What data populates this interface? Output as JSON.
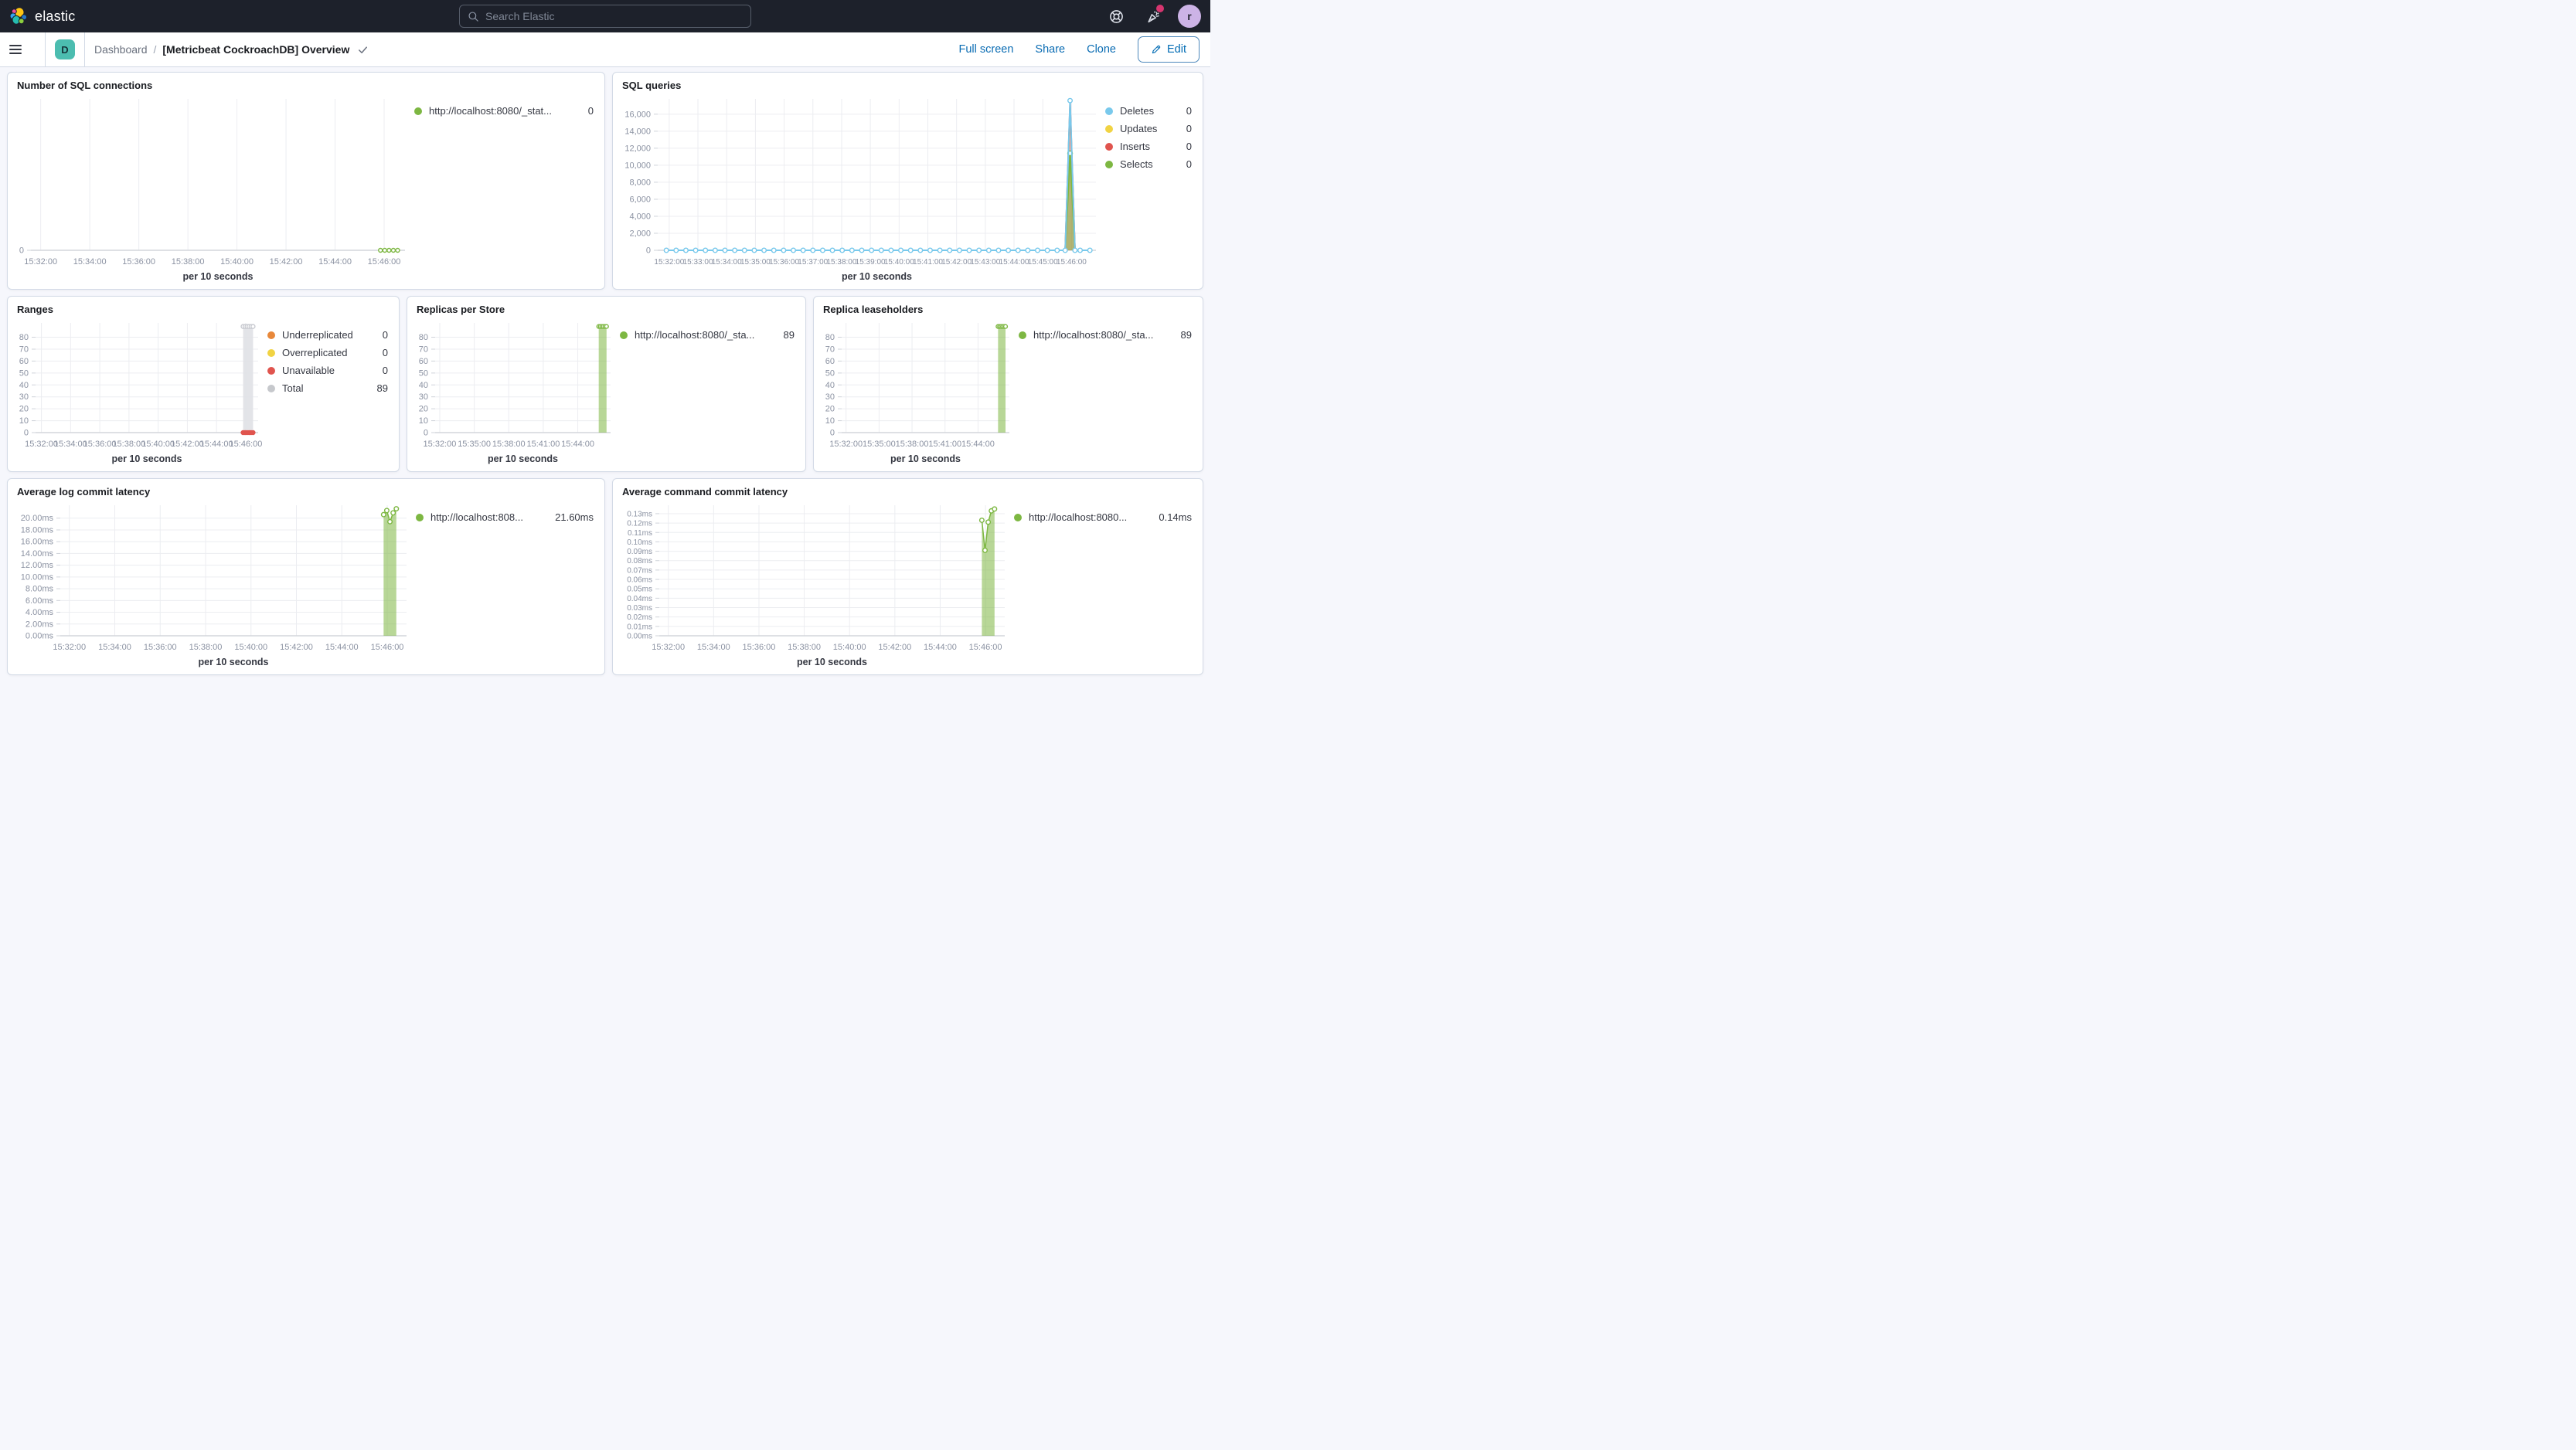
{
  "header": {
    "brand": "elastic",
    "search_placeholder": "Search Elastic",
    "avatar_initial": "r"
  },
  "navbar": {
    "menu_badge": "D",
    "breadcrumb": {
      "parent": "Dashboard",
      "separator": "/",
      "current": "[Metricbeat CockroachDB] Overview"
    },
    "actions": {
      "full_screen": "Full screen",
      "share": "Share",
      "clone": "Clone",
      "edit": "Edit"
    }
  },
  "chart_data": [
    {
      "type": "line",
      "title": "Number of SQL connections",
      "x_label": "per 10 seconds",
      "x_domain": [
        1.6,
        16.85
      ],
      "x_ticks": [
        {
          "t": 2,
          "label": "15:32:00"
        },
        {
          "t": 4,
          "label": "15:34:00"
        },
        {
          "t": 6,
          "label": "15:36:00"
        },
        {
          "t": 8,
          "label": "15:38:00"
        },
        {
          "t": 10,
          "label": "15:40:00"
        },
        {
          "t": 12,
          "label": "15:42:00"
        },
        {
          "t": 14,
          "label": "15:44:00"
        },
        {
          "t": 16,
          "label": "15:46:00"
        }
      ],
      "y_domain": [
        0,
        1
      ],
      "y_ticks": [
        {
          "v": 0,
          "label": "0"
        }
      ],
      "margin_left": 26,
      "series": [
        {
          "name": "http://localhost:8080/_stat...",
          "color": "#7db742",
          "width": 1.5,
          "markers": true,
          "marker_r": 2.5,
          "flat": [
            {
              "from": 15.85,
              "to": 16.55,
              "step": 0.175,
              "value": 0
            }
          ]
        }
      ],
      "legend": [
        {
          "label": "http://localhost:8080/_stat...",
          "value": "0",
          "color": "#7db742"
        }
      ]
    },
    {
      "type": "line",
      "title": "SQL queries",
      "x_label": "per 10 seconds",
      "x_domain": [
        1.6,
        16.85
      ],
      "x_tick_font": 10,
      "x_ticks": [
        {
          "t": 2,
          "label": "15:32:00"
        },
        {
          "t": 3,
          "label": "15:33:00"
        },
        {
          "t": 4,
          "label": "15:34:00"
        },
        {
          "t": 5,
          "label": "15:35:00"
        },
        {
          "t": 6,
          "label": "15:36:00"
        },
        {
          "t": 7,
          "label": "15:37:00"
        },
        {
          "t": 8,
          "label": "15:38:00"
        },
        {
          "t": 9,
          "label": "15:39:00"
        },
        {
          "t": 10,
          "label": "15:40:00"
        },
        {
          "t": 11,
          "label": "15:41:00"
        },
        {
          "t": 12,
          "label": "15:42:00"
        },
        {
          "t": 13,
          "label": "15:43:00"
        },
        {
          "t": 14,
          "label": "15:44:00"
        },
        {
          "t": 15,
          "label": "15:45:00"
        },
        {
          "t": 16,
          "label": "15:46:00"
        }
      ],
      "y_domain": [
        0,
        17800
      ],
      "y_ticks": [
        {
          "v": 0,
          "label": "0"
        },
        {
          "v": 2000,
          "label": "2,000"
        },
        {
          "v": 4000,
          "label": "4,000"
        },
        {
          "v": 6000,
          "label": "6,000"
        },
        {
          "v": 8000,
          "label": "8,000"
        },
        {
          "v": 10000,
          "label": "10,000"
        },
        {
          "v": 12000,
          "label": "12,000"
        },
        {
          "v": 14000,
          "label": "14,000"
        },
        {
          "v": 16000,
          "label": "16,000"
        }
      ],
      "margin_left": 54,
      "series": [
        {
          "name": "Updates",
          "color": "#f1d343",
          "width": 2,
          "points": [
            [
              15.78,
              0
            ],
            [
              15.95,
              16900
            ],
            [
              16.12,
              0
            ]
          ]
        },
        {
          "name": "Inserts",
          "color": "#e0544e",
          "width": 2,
          "fill": true,
          "fill_opacity": 0.45,
          "points": [
            [
              15.78,
              0
            ],
            [
              15.95,
              17300
            ],
            [
              16.12,
              0
            ]
          ]
        },
        {
          "name": "Selects",
          "color": "#7db742",
          "width": 2,
          "fill": true,
          "fill_opacity": 0.55,
          "points": [
            [
              15.78,
              0
            ],
            [
              15.95,
              11400
            ],
            [
              16.12,
              0
            ]
          ],
          "marker_points": [
            [
              15.95,
              11400
            ]
          ],
          "marker_r": 3
        },
        {
          "name": "Deletes",
          "color": "#79c9ec",
          "width": 2,
          "markers": true,
          "marker_r": 2.8,
          "flat": [
            {
              "from": 1.9,
              "to": 15.55,
              "step": 0.34,
              "value": 0
            },
            {
              "from": 16.3,
              "to": 16.65,
              "step": 0.34,
              "value": 0
            }
          ],
          "points": [
            [
              15.78,
              0
            ],
            [
              15.95,
              17600
            ],
            [
              16.12,
              0
            ]
          ]
        }
      ],
      "legend": [
        {
          "label": "Deletes",
          "value": "0",
          "color": "#79c9ec"
        },
        {
          "label": "Updates",
          "value": "0",
          "color": "#f1d343"
        },
        {
          "label": "Inserts",
          "value": "0",
          "color": "#e0544e"
        },
        {
          "label": "Selects",
          "value": "0",
          "color": "#7db742"
        }
      ]
    },
    {
      "type": "area",
      "title": "Ranges",
      "x_label": "per 10 seconds",
      "x_domain": [
        1.6,
        16.85
      ],
      "x_ticks": [
        {
          "t": 2,
          "label": "15:32:00"
        },
        {
          "t": 4,
          "label": "15:34:00"
        },
        {
          "t": 6,
          "label": "15:36:00"
        },
        {
          "t": 8,
          "label": "15:38:00"
        },
        {
          "t": 10,
          "label": "15:40:00"
        },
        {
          "t": 12,
          "label": "15:42:00"
        },
        {
          "t": 14,
          "label": "15:44:00"
        },
        {
          "t": 16,
          "label": "15:46:00"
        }
      ],
      "y_domain": [
        0,
        92
      ],
      "y_ticks": [
        {
          "v": 0,
          "label": "0"
        },
        {
          "v": 10,
          "label": "10"
        },
        {
          "v": 20,
          "label": "20"
        },
        {
          "v": 30,
          "label": "30"
        },
        {
          "v": 40,
          "label": "40"
        },
        {
          "v": 50,
          "label": "50"
        },
        {
          "v": 60,
          "label": "60"
        },
        {
          "v": 70,
          "label": "70"
        },
        {
          "v": 80,
          "label": "80"
        }
      ],
      "margin_left": 32,
      "series": [
        {
          "name": "Total",
          "color": "#c9cbd1",
          "width": 1,
          "fill": true,
          "fill_color": "#e0e1e5",
          "fill_opacity": 0.9,
          "markers": true,
          "marker_r": 2.5,
          "flat": [
            {
              "from": 15.82,
              "to": 16.5,
              "step": 0.136,
              "value": 89
            }
          ]
        },
        {
          "name": "Underreplicated",
          "color": "#e8883a",
          "width": 1.5,
          "flat": [
            {
              "from": 15.82,
              "to": 16.5,
              "step": 0.136,
              "value": 0
            }
          ]
        },
        {
          "name": "Overreplicated",
          "color": "#f1d343",
          "width": 1.5,
          "flat": [
            {
              "from": 15.82,
              "to": 16.5,
              "step": 0.136,
              "value": 0
            }
          ]
        },
        {
          "name": "Unavailable",
          "color": "#e0544e",
          "width": 1.5,
          "markers": true,
          "marker": "solid",
          "marker_r": 2.5,
          "flat": [
            {
              "from": 15.82,
              "to": 16.5,
              "step": 0.136,
              "value": 0
            }
          ]
        }
      ],
      "legend": [
        {
          "label": "Underreplicated",
          "value": "0",
          "color": "#e8883a"
        },
        {
          "label": "Overreplicated",
          "value": "0",
          "color": "#f1d343"
        },
        {
          "label": "Unavailable",
          "value": "0",
          "color": "#e0544e"
        },
        {
          "label": "Total",
          "value": "89",
          "color": "#c6c8cc"
        }
      ]
    },
    {
      "type": "area",
      "title": "Replicas per Store",
      "x_label": "per 10 seconds",
      "x_domain": [
        1.6,
        16.85
      ],
      "x_ticks": [
        {
          "t": 2,
          "label": "15:32:00"
        },
        {
          "t": 5,
          "label": "15:35:00"
        },
        {
          "t": 8,
          "label": "15:38:00"
        },
        {
          "t": 11,
          "label": "15:41:00"
        },
        {
          "t": 14,
          "label": "15:44:00"
        }
      ],
      "y_domain": [
        0,
        92
      ],
      "y_ticks": [
        {
          "v": 0,
          "label": "0"
        },
        {
          "v": 10,
          "label": "10"
        },
        {
          "v": 20,
          "label": "20"
        },
        {
          "v": 30,
          "label": "30"
        },
        {
          "v": 40,
          "label": "40"
        },
        {
          "v": 50,
          "label": "50"
        },
        {
          "v": 60,
          "label": "60"
        },
        {
          "v": 70,
          "label": "70"
        },
        {
          "v": 80,
          "label": "80"
        }
      ],
      "margin_left": 32,
      "series": [
        {
          "name": "http://localhost:8080/_sta...",
          "color": "#7db742",
          "width": 1.2,
          "fill": true,
          "fill_opacity": 0.55,
          "markers": true,
          "marker_r": 2.4,
          "flat": [
            {
              "from": 15.82,
              "to": 16.5,
              "step": 0.136,
              "value": 89
            }
          ]
        }
      ],
      "legend": [
        {
          "label": "http://localhost:8080/_sta...",
          "value": "89",
          "color": "#7db742"
        }
      ]
    },
    {
      "type": "area",
      "title": "Replica leaseholders",
      "x_label": "per 10 seconds",
      "x_domain": [
        1.6,
        16.85
      ],
      "x_ticks": [
        {
          "t": 2,
          "label": "15:32:00"
        },
        {
          "t": 5,
          "label": "15:35:00"
        },
        {
          "t": 8,
          "label": "15:38:00"
        },
        {
          "t": 11,
          "label": "15:41:00"
        },
        {
          "t": 14,
          "label": "15:44:00"
        }
      ],
      "y_domain": [
        0,
        92
      ],
      "y_ticks": [
        {
          "v": 0,
          "label": "0"
        },
        {
          "v": 10,
          "label": "10"
        },
        {
          "v": 20,
          "label": "20"
        },
        {
          "v": 30,
          "label": "30"
        },
        {
          "v": 40,
          "label": "40"
        },
        {
          "v": 50,
          "label": "50"
        },
        {
          "v": 60,
          "label": "60"
        },
        {
          "v": 70,
          "label": "70"
        },
        {
          "v": 80,
          "label": "80"
        }
      ],
      "margin_left": 32,
      "series": [
        {
          "name": "http://localhost:8080/_sta...",
          "color": "#7db742",
          "width": 1.2,
          "fill": true,
          "fill_opacity": 0.55,
          "markers": true,
          "marker_r": 2.4,
          "flat": [
            {
              "from": 15.82,
              "to": 16.5,
              "step": 0.136,
              "value": 89
            }
          ]
        }
      ],
      "legend": [
        {
          "label": "http://localhost:8080/_sta...",
          "value": "89",
          "color": "#7db742"
        }
      ]
    },
    {
      "type": "area",
      "title": "Average log commit latency",
      "x_label": "per 10 seconds",
      "x_domain": [
        1.6,
        16.85
      ],
      "x_ticks": [
        {
          "t": 2,
          "label": "15:32:00"
        },
        {
          "t": 4,
          "label": "15:34:00"
        },
        {
          "t": 6,
          "label": "15:36:00"
        },
        {
          "t": 8,
          "label": "15:38:00"
        },
        {
          "t": 10,
          "label": "15:40:00"
        },
        {
          "t": 12,
          "label": "15:42:00"
        },
        {
          "t": 14,
          "label": "15:44:00"
        },
        {
          "t": 16,
          "label": "15:46:00"
        }
      ],
      "y_domain": [
        0,
        22.2
      ],
      "y_ticks": [
        {
          "v": 0,
          "label": "0.00ms"
        },
        {
          "v": 2,
          "label": "2.00ms"
        },
        {
          "v": 4,
          "label": "4.00ms"
        },
        {
          "v": 6,
          "label": "6.00ms"
        },
        {
          "v": 8,
          "label": "8.00ms"
        },
        {
          "v": 10,
          "label": "10.00ms"
        },
        {
          "v": 12,
          "label": "12.00ms"
        },
        {
          "v": 14,
          "label": "14.00ms"
        },
        {
          "v": 16,
          "label": "16.00ms"
        },
        {
          "v": 18,
          "label": "18.00ms"
        },
        {
          "v": 20,
          "label": "20.00ms"
        }
      ],
      "margin_left": 64,
      "series": [
        {
          "name": "http://localhost:808...",
          "color": "#7db742",
          "width": 1.5,
          "fill": true,
          "fill_opacity": 0.55,
          "markers": true,
          "marker_r": 2.8,
          "points": [
            [
              15.84,
              20.6
            ],
            [
              15.98,
              21.3
            ],
            [
              16.12,
              19.4
            ],
            [
              16.26,
              20.9
            ],
            [
              16.4,
              21.6
            ]
          ]
        }
      ],
      "legend": [
        {
          "label": "http://localhost:808...",
          "value": "21.60ms",
          "color": "#7db742"
        }
      ]
    },
    {
      "type": "area",
      "title": "Average command commit latency",
      "x_label": "per 10 seconds",
      "x_domain": [
        1.6,
        16.85
      ],
      "y_tick_font": 10,
      "x_ticks": [
        {
          "t": 2,
          "label": "15:32:00"
        },
        {
          "t": 4,
          "label": "15:34:00"
        },
        {
          "t": 6,
          "label": "15:36:00"
        },
        {
          "t": 8,
          "label": "15:38:00"
        },
        {
          "t": 10,
          "label": "15:40:00"
        },
        {
          "t": 12,
          "label": "15:42:00"
        },
        {
          "t": 14,
          "label": "15:44:00"
        },
        {
          "t": 16,
          "label": "15:46:00"
        }
      ],
      "y_domain": [
        0,
        0.139
      ],
      "y_ticks": [
        {
          "v": 0,
          "label": "0.00ms"
        },
        {
          "v": 0.01,
          "label": "0.01ms"
        },
        {
          "v": 0.02,
          "label": "0.02ms"
        },
        {
          "v": 0.03,
          "label": "0.03ms"
        },
        {
          "v": 0.04,
          "label": "0.04ms"
        },
        {
          "v": 0.05,
          "label": "0.05ms"
        },
        {
          "v": 0.06,
          "label": "0.06ms"
        },
        {
          "v": 0.07,
          "label": "0.07ms"
        },
        {
          "v": 0.08,
          "label": "0.08ms"
        },
        {
          "v": 0.09,
          "label": "0.09ms"
        },
        {
          "v": 0.1,
          "label": "0.10ms"
        },
        {
          "v": 0.11,
          "label": "0.11ms"
        },
        {
          "v": 0.12,
          "label": "0.12ms"
        },
        {
          "v": 0.13,
          "label": "0.13ms"
        }
      ],
      "margin_left": 56,
      "series": [
        {
          "name": "http://localhost:8080...",
          "color": "#7db742",
          "width": 1.5,
          "fill": true,
          "fill_opacity": 0.55,
          "markers": true,
          "marker_r": 2.8,
          "points": [
            [
              15.84,
              0.123
            ],
            [
              15.98,
              0.091
            ],
            [
              16.12,
              0.121
            ],
            [
              16.26,
              0.133
            ],
            [
              16.4,
              0.135
            ]
          ]
        }
      ],
      "legend": [
        {
          "label": "http://localhost:8080...",
          "value": "0.14ms",
          "color": "#7db742"
        }
      ]
    }
  ]
}
